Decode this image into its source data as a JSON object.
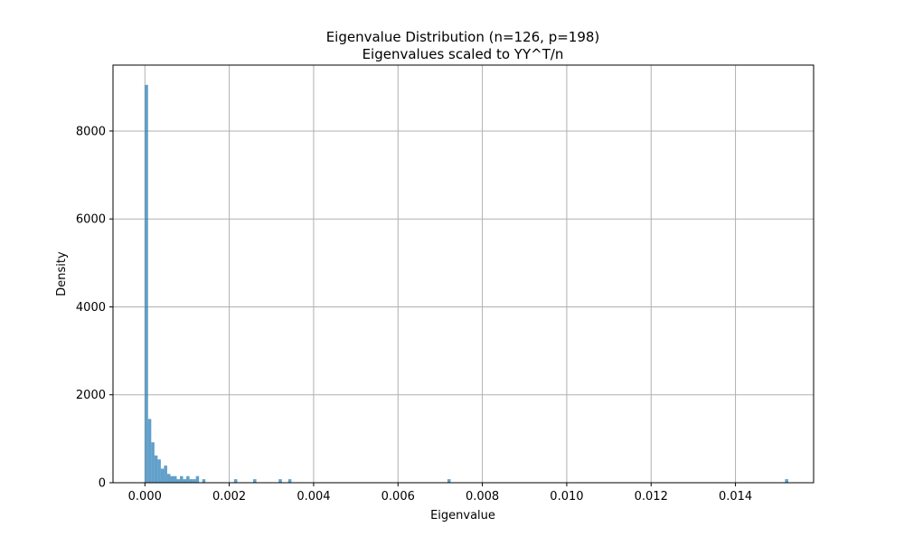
{
  "chart_data": {
    "type": "bar",
    "title": "Eigenvalue Distribution (n=126, p=198)",
    "subtitle": "Eigenvalues scaled to YY^T/n",
    "xlabel": "Eigenvalue",
    "ylabel": "Density",
    "xlim": [
      -0.000756,
      0.015852
    ],
    "ylim": [
      0,
      9500
    ],
    "xticks": [
      0.0,
      0.002,
      0.004,
      0.006,
      0.008,
      0.01,
      0.012,
      0.014
    ],
    "xtick_labels": [
      "0.000",
      "0.002",
      "0.004",
      "0.006",
      "0.008",
      "0.010",
      "0.012",
      "0.014"
    ],
    "yticks": [
      0,
      2000,
      4000,
      6000,
      8000
    ],
    "ytick_labels": [
      "0",
      "2000",
      "4000",
      "6000",
      "8000"
    ],
    "grid": true,
    "bar_color": "#1f77b4",
    "bar_alpha": 0.7,
    "bin_width": 7.55e-05,
    "bins": [
      {
        "x": 0.0,
        "v": 9050
      },
      {
        "x": 7.55e-05,
        "v": 1450
      },
      {
        "x": 0.000151,
        "v": 920
      },
      {
        "x": 0.0002265,
        "v": 620
      },
      {
        "x": 0.000302,
        "v": 530
      },
      {
        "x": 0.0003775,
        "v": 320
      },
      {
        "x": 0.000453,
        "v": 390
      },
      {
        "x": 0.0005285,
        "v": 200
      },
      {
        "x": 0.000604,
        "v": 150
      },
      {
        "x": 0.0006795,
        "v": 150
      },
      {
        "x": 0.000755,
        "v": 80
      },
      {
        "x": 0.0008305,
        "v": 150
      },
      {
        "x": 0.000906,
        "v": 80
      },
      {
        "x": 0.0009815,
        "v": 150
      },
      {
        "x": 0.001057,
        "v": 80
      },
      {
        "x": 0.0011325,
        "v": 80
      },
      {
        "x": 0.001208,
        "v": 150
      },
      {
        "x": 0.001359,
        "v": 80
      },
      {
        "x": 0.002114,
        "v": 80
      },
      {
        "x": 0.002567,
        "v": 80
      },
      {
        "x": 0.003171,
        "v": 80
      },
      {
        "x": 0.0033975,
        "v": 80
      },
      {
        "x": 0.0071725,
        "v": 80
      },
      {
        "x": 0.0151755,
        "v": 80
      }
    ]
  }
}
